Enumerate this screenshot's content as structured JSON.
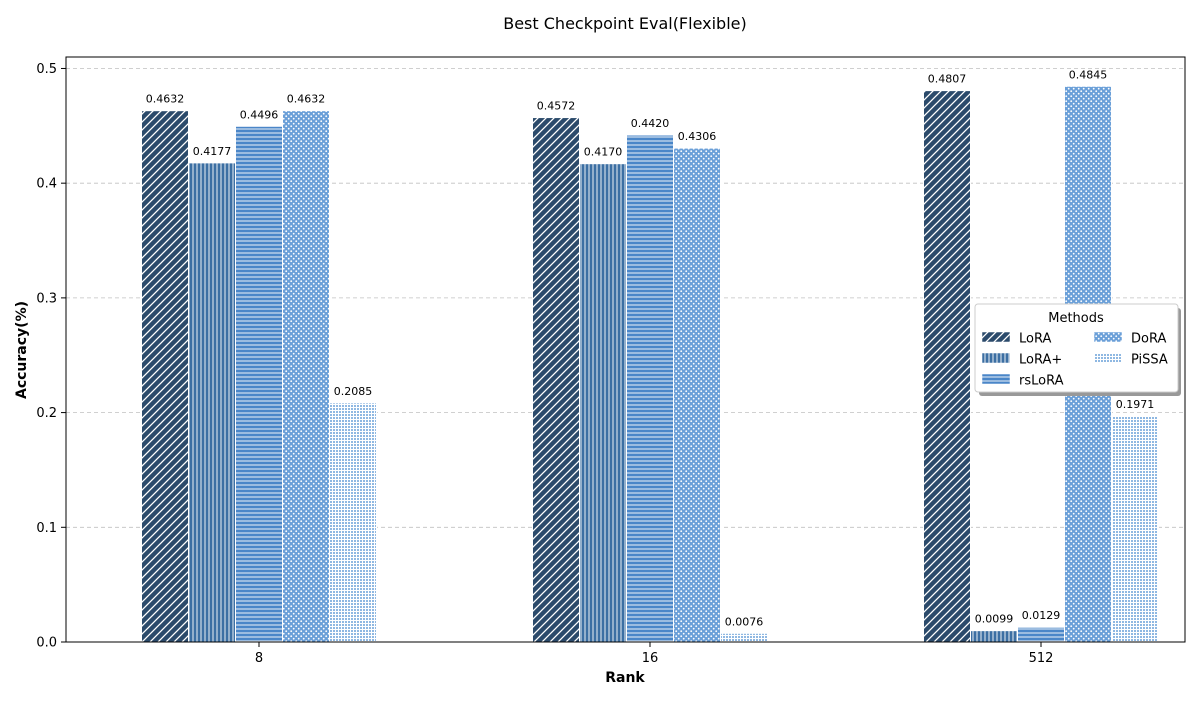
{
  "chart_data": {
    "type": "bar",
    "title": "Best Checkpoint Eval(Flexible)",
    "xlabel": "Rank",
    "ylabel": "Accuracy(%)",
    "categories": [
      "8",
      "16",
      "512"
    ],
    "ylim": [
      0,
      0.51
    ],
    "yticks": [
      "0.0",
      "0.1",
      "0.2",
      "0.3",
      "0.4",
      "0.5"
    ],
    "grid": "horizontal-dashed",
    "legend": {
      "title": "Methods",
      "placement": "right",
      "columns": 2
    },
    "series": [
      {
        "name": "LoRA",
        "values": [
          0.4632,
          0.4572,
          0.4807
        ],
        "labels": [
          "0.4632",
          "0.4572",
          "0.4807"
        ],
        "color": "#2b4a6b",
        "pattern": "diagonal"
      },
      {
        "name": "LoRA+",
        "values": [
          0.4177,
          0.417,
          0.0099
        ],
        "labels": [
          "0.4177",
          "0.4170",
          "0.0099"
        ],
        "color": "#3c6fa3",
        "pattern": "vertical"
      },
      {
        "name": "rsLoRA",
        "values": [
          0.4496,
          0.442,
          0.0129
        ],
        "labels": [
          "0.4496",
          "0.4420",
          "0.0129"
        ],
        "color": "#4a86c8",
        "pattern": "horizontal"
      },
      {
        "name": "DoRA",
        "values": [
          0.4632,
          0.4306,
          0.4845
        ],
        "labels": [
          "0.4632",
          "0.4306",
          "0.4845"
        ],
        "color": "#6a9fd8",
        "pattern": "dots"
      },
      {
        "name": "PiSSA",
        "values": [
          0.2085,
          0.0076,
          0.1971
        ],
        "labels": [
          "0.2085",
          "0.0076",
          "0.1971"
        ],
        "color": "#8fb8e2",
        "pattern": "fine-dots"
      }
    ]
  }
}
